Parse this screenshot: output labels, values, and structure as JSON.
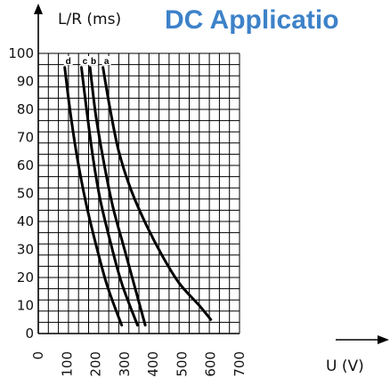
{
  "title": "DC Applicatio",
  "chart_data": {
    "type": "line",
    "ylabel": "L/R (ms)",
    "xlabel": "U (V)",
    "xlim": [
      0,
      700
    ],
    "ylim": [
      0,
      100
    ],
    "x_ticks": [
      "0",
      "100",
      "200",
      "300",
      "400",
      "500",
      "600",
      "700"
    ],
    "y_ticks": [
      "0",
      "10",
      "20",
      "30",
      "40",
      "50",
      "60",
      "70",
      "80",
      "90",
      "100"
    ],
    "grid": true,
    "series": [
      {
        "name": "a",
        "x": [
          225,
          250,
          280,
          320,
          370,
          430,
          490,
          560,
          600
        ],
        "y": [
          95,
          80,
          65,
          52,
          40,
          28,
          18,
          10,
          5
        ]
      },
      {
        "name": "b",
        "x": [
          180,
          200,
          230,
          260,
          300,
          340,
          372
        ],
        "y": [
          95,
          78,
          60,
          45,
          30,
          15,
          3
        ]
      },
      {
        "name": "c",
        "x": [
          150,
          168,
          190,
          215,
          250,
          290,
          345
        ],
        "y": [
          95,
          80,
          63,
          48,
          33,
          18,
          3
        ]
      },
      {
        "name": "d",
        "x": [
          92,
          110,
          135,
          165,
          200,
          240,
          290
        ],
        "y": [
          95,
          80,
          63,
          47,
          32,
          17,
          3
        ]
      }
    ]
  }
}
